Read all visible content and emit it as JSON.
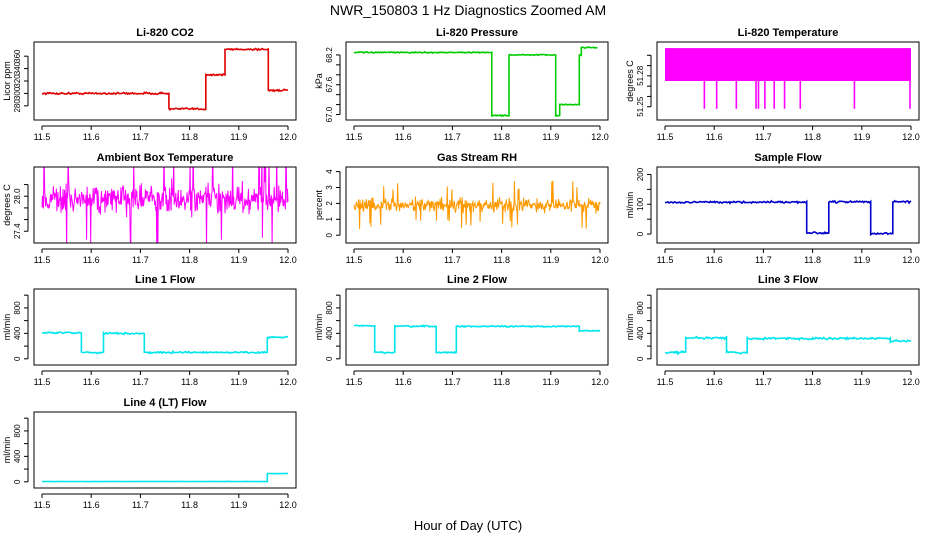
{
  "page": {
    "title": "NWR_150803  1 Hz Diagnostics Zoomed AM",
    "xlabel": "Hour of Day (UTC)"
  },
  "chart_data": [
    {
      "id": "co2",
      "type": "line",
      "title": "Li-820 CO2",
      "ylabel": "Licor ppm",
      "color": "#dd0000",
      "style": "step",
      "noise": 1.5,
      "xlim": [
        11.5,
        12.0
      ],
      "xticks": [
        11.5,
        11.6,
        11.7,
        11.8,
        11.9,
        12.0
      ],
      "ylim": [
        262,
        378
      ],
      "yticks": [
        280,
        300,
        320,
        340,
        360
      ],
      "segments": [
        [
          11.5,
          11.758,
          300
        ],
        [
          11.758,
          11.833,
          275
        ],
        [
          11.833,
          11.872,
          330
        ],
        [
          11.872,
          11.96,
          371
        ],
        [
          11.96,
          12.0,
          305
        ]
      ]
    },
    {
      "id": "pressure",
      "type": "line",
      "title": "Li-820 Pressure",
      "ylabel": "kPa",
      "color": "#00cc00",
      "style": "step",
      "noise": 0.01,
      "xlim": [
        11.5,
        12.0
      ],
      "xticks": [
        11.5,
        11.6,
        11.7,
        11.8,
        11.9,
        12.0
      ],
      "ylim": [
        66.95,
        68.4
      ],
      "yticks": [
        67.0,
        67.2,
        67.4,
        67.6,
        67.8,
        68.0,
        68.2
      ],
      "ytick_labels": [
        "67.0",
        "67.6",
        "68.2"
      ],
      "segments": [
        [
          11.5,
          11.78,
          68.25
        ],
        [
          11.78,
          11.815,
          66.98
        ],
        [
          11.815,
          11.91,
          68.2
        ],
        [
          11.91,
          11.918,
          66.98
        ],
        [
          11.918,
          11.958,
          67.2
        ],
        [
          11.958,
          11.962,
          68.2
        ],
        [
          11.962,
          11.995,
          68.35
        ]
      ]
    },
    {
      "id": "licor_temp",
      "type": "line",
      "title": "Li-820 Temperature",
      "ylabel": "degrees C",
      "color": "#ff00ff",
      "style": "band",
      "xlim": [
        11.5,
        12.0
      ],
      "xticks": [
        11.5,
        11.6,
        11.7,
        11.8,
        11.9,
        12.0
      ],
      "ylim": [
        51.24,
        51.31
      ],
      "yticks": [
        51.25,
        51.26,
        51.27,
        51.28,
        51.29,
        51.3
      ],
      "ytick_labels": [
        "51.25",
        "51.28"
      ],
      "band": [
        51.275,
        51.307
      ],
      "spikes": [
        11.58,
        11.605,
        11.645,
        11.685,
        11.69,
        11.703,
        11.722,
        11.743,
        11.775,
        11.885,
        11.998
      ],
      "spike_to": 51.248
    },
    {
      "id": "ambient_temp",
      "type": "line",
      "title": "Ambient Box Temperature",
      "ylabel": "degrees C",
      "color": "#ff00ff",
      "style": "noise",
      "center": 27.95,
      "spread": 0.45,
      "xlim": [
        11.5,
        12.0
      ],
      "xticks": [
        11.5,
        11.6,
        11.7,
        11.8,
        11.9,
        12.0
      ],
      "ylim": [
        27.25,
        28.45
      ],
      "yticks": [
        27.4,
        27.6,
        27.8,
        28.0,
        28.2
      ],
      "ytick_labels": [
        "27.4",
        "28.0"
      ]
    },
    {
      "id": "rh",
      "type": "line",
      "title": "Gas Stream RH",
      "ylabel": "percent",
      "color": "#ff9900",
      "style": "noise",
      "center": 1.9,
      "spread": 0.7,
      "xlim": [
        11.5,
        12.0
      ],
      "xticks": [
        11.5,
        11.6,
        11.7,
        11.8,
        11.9,
        12.0
      ],
      "ylim": [
        -0.3,
        4.1
      ],
      "yticks": [
        0,
        1,
        2,
        3,
        4
      ]
    },
    {
      "id": "sample_flow",
      "type": "line",
      "title": "Sample Flow",
      "ylabel": "ml/min",
      "color": "#0000cc",
      "style": "step",
      "noise": 3,
      "xlim": [
        11.5,
        12.0
      ],
      "xticks": [
        11.5,
        11.6,
        11.7,
        11.8,
        11.9,
        12.0
      ],
      "ylim": [
        -20,
        215
      ],
      "yticks": [
        0,
        50,
        100,
        150,
        200
      ],
      "ytick_labels": [
        "0",
        "100",
        "200"
      ],
      "segments": [
        [
          11.5,
          11.788,
          107
        ],
        [
          11.788,
          11.833,
          3
        ],
        [
          11.833,
          11.918,
          108
        ],
        [
          11.918,
          11.963,
          1
        ],
        [
          11.963,
          12.0,
          109
        ]
      ]
    },
    {
      "id": "line1",
      "type": "line",
      "title": "Line 1 Flow",
      "ylabel": "ml/min",
      "color": "#00e5ee",
      "style": "step",
      "noise": 12,
      "xlim": [
        11.5,
        12.0
      ],
      "xticks": [
        11.5,
        11.6,
        11.7,
        11.8,
        11.9,
        12.0
      ],
      "ylim": [
        -50,
        1050
      ],
      "yticks": [
        0,
        200,
        400,
        600,
        800,
        1000
      ],
      "ytick_labels": [
        "0",
        "400",
        "800"
      ],
      "segments": [
        [
          11.5,
          11.58,
          410
        ],
        [
          11.58,
          11.625,
          100
        ],
        [
          11.625,
          11.708,
          400
        ],
        [
          11.708,
          11.958,
          100
        ],
        [
          11.958,
          12.0,
          340
        ]
      ]
    },
    {
      "id": "line2",
      "type": "line",
      "title": "Line 2 Flow",
      "ylabel": "ml/min",
      "color": "#00e5ee",
      "style": "step",
      "noise": 10,
      "xlim": [
        11.5,
        12.0
      ],
      "xticks": [
        11.5,
        11.6,
        11.7,
        11.8,
        11.9,
        12.0
      ],
      "ylim": [
        -50,
        1050
      ],
      "yticks": [
        0,
        200,
        400,
        600,
        800,
        1000
      ],
      "ytick_labels": [
        "0",
        "400",
        "800"
      ],
      "segments": [
        [
          11.5,
          11.542,
          520
        ],
        [
          11.542,
          11.583,
          100
        ],
        [
          11.583,
          11.667,
          510
        ],
        [
          11.667,
          11.708,
          100
        ],
        [
          11.708,
          11.958,
          510
        ],
        [
          11.958,
          12.0,
          440
        ]
      ]
    },
    {
      "id": "line3",
      "type": "line",
      "title": "Line 3 Flow",
      "ylabel": "ml/min",
      "color": "#00e5ee",
      "style": "step",
      "noise": 15,
      "xlim": [
        11.5,
        12.0
      ],
      "xticks": [
        11.5,
        11.6,
        11.7,
        11.8,
        11.9,
        12.0
      ],
      "ylim": [
        -50,
        1050
      ],
      "yticks": [
        0,
        200,
        400,
        600,
        800,
        1000
      ],
      "ytick_labels": [
        "0",
        "400",
        "800"
      ],
      "segments": [
        [
          11.5,
          11.542,
          100
        ],
        [
          11.542,
          11.625,
          330
        ],
        [
          11.625,
          11.667,
          100
        ],
        [
          11.667,
          11.958,
          320
        ],
        [
          11.958,
          12.0,
          280
        ]
      ]
    },
    {
      "id": "line4",
      "type": "line",
      "title": "Line 4 (LT) Flow",
      "ylabel": "ml/min",
      "color": "#00e5ee",
      "style": "step",
      "noise": 2,
      "xlim": [
        11.5,
        12.0
      ],
      "xticks": [
        11.5,
        11.6,
        11.7,
        11.8,
        11.9,
        12.0
      ],
      "ylim": [
        -50,
        1050
      ],
      "yticks": [
        0,
        200,
        400,
        600,
        800,
        1000
      ],
      "ytick_labels": [
        "0",
        "400",
        "800"
      ],
      "segments": [
        [
          11.5,
          11.958,
          5
        ],
        [
          11.958,
          12.0,
          130
        ]
      ]
    }
  ]
}
